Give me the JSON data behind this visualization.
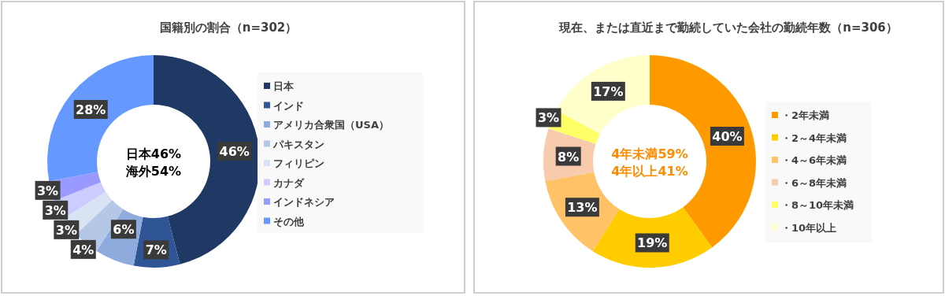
{
  "chart_data": [
    {
      "type": "donut",
      "title": "国籍別の割合（n=302）",
      "categories": [
        "日本",
        "インド",
        "アメリカ合衆国（USA）",
        "パキスタン",
        "フィリピン",
        "カナダ",
        "インドネシア",
        "その他"
      ],
      "values": [
        46,
        7,
        6,
        4,
        3,
        3,
        3,
        28
      ],
      "value_labels": [
        "46%",
        "7%",
        "6%",
        "4%",
        "3%",
        "3%",
        "3%",
        "28%"
      ],
      "colors": [
        "#1f3864",
        "#2f5597",
        "#8faadc",
        "#b4c7e7",
        "#dae3f3",
        "#ccccff",
        "#9999ff",
        "#6699ff"
      ],
      "legend": "right",
      "annotations": [
        "日本46%",
        "海外54%"
      ]
    },
    {
      "type": "donut",
      "title": "現在、または直近まで勤続していた会社の勤続年数（n=306）",
      "categories": [
        "・2年未満",
        "・2～4年未満",
        "・4～6年未満",
        "・6～8年未満",
        "・8～10年未満",
        "・10年以上"
      ],
      "values": [
        40,
        19,
        13,
        8,
        3,
        17
      ],
      "value_labels": [
        "40%",
        "19%",
        "13%",
        "8%",
        "3%",
        "17%"
      ],
      "colors": [
        "#ff9900",
        "#ffcc00",
        "#ffc266",
        "#f8cbad",
        "#ffff66",
        "#ffffcc"
      ],
      "legend": "right",
      "annotations": [
        "4年未満59%",
        "4年以上41%"
      ]
    }
  ]
}
